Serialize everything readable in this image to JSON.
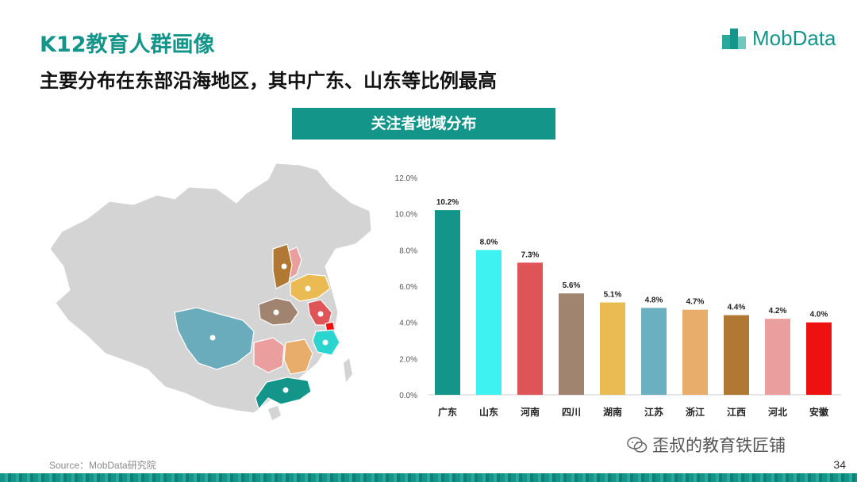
{
  "slide": {
    "title": "K12教育人群画像",
    "subtitle": "主要分布在东部沿海地区，其中广东、山东等比例最高",
    "banner": "关注者地域分布",
    "logo_text": "MobData",
    "source": "Source：MobData研究院",
    "watermark": "歪叔的教育铁匠铺",
    "page_number": "34"
  },
  "colors": {
    "accent": "#13958a",
    "map_base": "#d4d4d4"
  },
  "map": {
    "highlighted_provinces": [
      "广东",
      "山东",
      "河南",
      "四川",
      "湖南",
      "江苏",
      "浙江",
      "江西",
      "河北",
      "安徽"
    ]
  },
  "chart_data": {
    "type": "bar",
    "categories": [
      "广东",
      "山东",
      "河南",
      "四川",
      "湖南",
      "江苏",
      "浙江",
      "江西",
      "河北",
      "安徽"
    ],
    "values": [
      10.2,
      8.0,
      7.3,
      5.6,
      5.1,
      4.8,
      4.7,
      4.4,
      4.2,
      4.0
    ],
    "data_labels": [
      "10.2%",
      "8.0%",
      "7.3%",
      "5.6%",
      "5.1%",
      "4.8%",
      "4.7%",
      "4.4%",
      "4.2%",
      "4.0%"
    ],
    "bar_colors": [
      "#13958a",
      "#3ff2f2",
      "#df5557",
      "#a08470",
      "#e9bb52",
      "#6ab0c0",
      "#e8ac6b",
      "#b07832",
      "#eb9e9e",
      "#ee1111"
    ],
    "y_ticks": [
      "0.0%",
      "2.0%",
      "4.0%",
      "6.0%",
      "8.0%",
      "10.0%",
      "12.0%"
    ],
    "ylim": [
      0,
      12
    ],
    "title": "",
    "xlabel": "",
    "ylabel": "",
    "grid": false
  }
}
